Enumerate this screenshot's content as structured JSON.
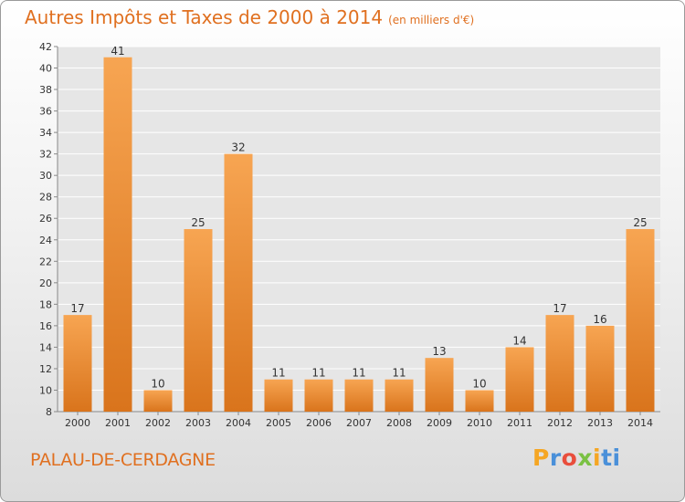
{
  "header": {
    "title": "Autres Impôts et Taxes de 2000 à 2014",
    "unit": "(en milliers d'€)"
  },
  "footer": {
    "commune": "PALAU-DE-CERDAGNE",
    "brand": [
      "P",
      "r",
      "o",
      "x",
      "i",
      "ti"
    ]
  },
  "colors": {
    "bar_top": "#f7a552",
    "bar_bottom": "#d9741c",
    "accent": "#e07020",
    "grid": "#ffffff"
  },
  "chart_data": {
    "type": "bar",
    "categories": [
      "2000",
      "2001",
      "2002",
      "2003",
      "2004",
      "2005",
      "2006",
      "2007",
      "2008",
      "2009",
      "2010",
      "2011",
      "2012",
      "2013",
      "2014"
    ],
    "values": [
      17,
      41,
      10,
      25,
      32,
      11,
      11,
      11,
      11,
      13,
      10,
      14,
      17,
      16,
      25
    ],
    "title": "Autres Impôts et Taxes de 2000 à 2014",
    "unit": "(en milliers d'€)",
    "xlabel": "",
    "ylabel": "",
    "ylim": [
      8,
      42
    ],
    "yticks": [
      8,
      10,
      12,
      14,
      16,
      18,
      20,
      22,
      24,
      26,
      28,
      30,
      32,
      34,
      36,
      38,
      40,
      42
    ],
    "grid": true,
    "data_labels": true
  }
}
